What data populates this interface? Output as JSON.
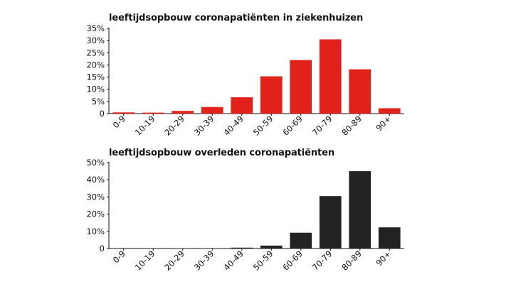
{
  "chart_data": [
    {
      "type": "bar",
      "title": "leeftijdsopbouw coronapatiënten in ziekenhuizen",
      "categories": [
        "0-9",
        "10-19",
        "20-29",
        "30-39",
        "40-49",
        "50-59",
        "60-69",
        "70-79",
        "80-89",
        "90+"
      ],
      "values": [
        0.5,
        0.4,
        1.1,
        2.7,
        6.7,
        15.3,
        22.0,
        30.5,
        18.2,
        2.2
      ],
      "yticks": [
        "35%",
        "30%",
        "25%",
        "20%",
        "15%",
        "10%",
        "5%",
        "0"
      ],
      "ylim": [
        0,
        35
      ],
      "color": "#e3211b",
      "xlabel": "",
      "ylabel": ""
    },
    {
      "type": "bar",
      "title": "leeftijdsopbouw overleden coronapatiënten",
      "categories": [
        "0-9",
        "10-19",
        "20-29",
        "30-39",
        "40-49",
        "50-59",
        "60-69",
        "70-79",
        "80-89",
        "90+"
      ],
      "values": [
        0.0,
        0.0,
        0.1,
        0.2,
        0.5,
        1.7,
        9.2,
        30.5,
        45.0,
        12.3
      ],
      "yticks": [
        "50%",
        "40%",
        "30%",
        "20%",
        "10%",
        "0"
      ],
      "ylim": [
        0,
        50
      ],
      "color": "#222222",
      "xlabel": "",
      "ylabel": ""
    }
  ]
}
